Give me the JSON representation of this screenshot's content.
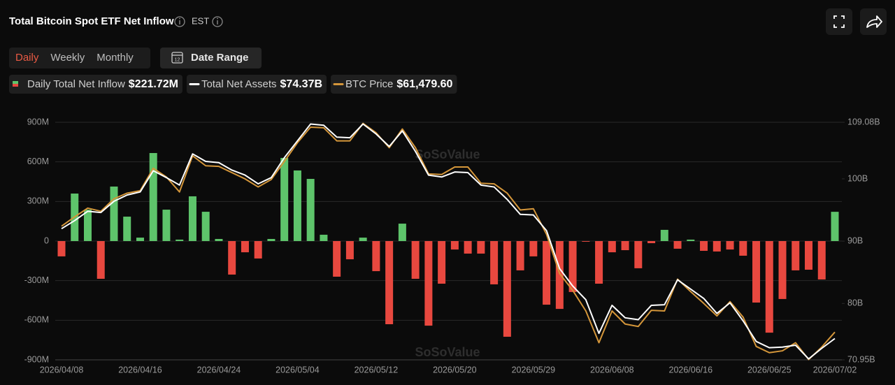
{
  "chart_data": {
    "type": "bar-line",
    "title": "Total Bitcoin Spot ETF Net Inflow",
    "timezone": "EST",
    "controls": {
      "periods": [
        "Daily",
        "Weekly",
        "Monthly"
      ],
      "active": 0,
      "date_range": "Date Range"
    },
    "watermark": "SoSoValue",
    "categories": [
      "2026/04/08",
      null,
      null,
      null,
      null,
      null,
      "2026/04/16",
      null,
      null,
      null,
      null,
      null,
      "2026/04/24",
      null,
      null,
      null,
      null,
      null,
      "2026/05/04",
      null,
      null,
      null,
      null,
      null,
      "2026/05/12",
      null,
      null,
      null,
      null,
      null,
      "2026/05/20",
      null,
      null,
      null,
      null,
      null,
      "2026/05/29",
      null,
      null,
      null,
      null,
      null,
      "2026/06/08",
      null,
      null,
      null,
      null,
      null,
      "2026/06/16",
      null,
      null,
      null,
      null,
      null,
      "2026/06/25",
      null,
      null,
      null,
      null,
      "2026/07/02"
    ],
    "series": [
      {
        "name": "Daily Total Net Inflow",
        "type": "bar",
        "latest": "$221.72M",
        "up_color": "#5ec46b",
        "down_color": "#e8483f",
        "values": [
          -116,
          360,
          238,
          -286,
          413,
          185,
          26,
          667,
          238,
          11,
          339,
          222,
          16,
          -254,
          -85,
          -132,
          16,
          630,
          535,
          471,
          48,
          -270,
          -138,
          26,
          -228,
          -630,
          132,
          -286,
          -641,
          -323,
          -64,
          -95,
          -95,
          -328,
          -725,
          -222,
          -116,
          -482,
          -514,
          -386,
          -5,
          -323,
          -85,
          -69,
          -206,
          -16,
          85,
          -58,
          11,
          -74,
          -79,
          -64,
          -111,
          -466,
          -694,
          -439,
          -222,
          -217,
          -291,
          221.72
        ]
      },
      {
        "name": "Total Net Assets",
        "type": "line",
        "axis": "y2",
        "latest": "$74.37B",
        "color": "#ffffff",
        "values": [
          92.0,
          93.3,
          94.8,
          94.6,
          96.4,
          97.4,
          97.9,
          101.3,
          100.2,
          99.0,
          104.0,
          102.8,
          102.6,
          101.4,
          100.6,
          99.2,
          100.2,
          103.4,
          106.1,
          108.8,
          108.6,
          106.7,
          106.6,
          108.8,
          107.2,
          105.2,
          107.7,
          104.4,
          100.6,
          100.3,
          101.1,
          101.0,
          99.0,
          98.7,
          96.7,
          94.3,
          94.2,
          91.7,
          85.6,
          82.8,
          80.6,
          75.2,
          79.7,
          77.7,
          77.4,
          79.7,
          79.8,
          83.8,
          82.3,
          80.8,
          78.4,
          80.1,
          77.2,
          73.9,
          72.9,
          73.0,
          73.3,
          71.1,
          72.8,
          74.37
        ]
      },
      {
        "name": "BTC Price",
        "type": "line",
        "axis": "y2",
        "latest": "$61,479.60",
        "color": "#d4963a",
        "values": [
          92.4,
          93.9,
          95.3,
          94.8,
          96.8,
          97.7,
          98.1,
          101.7,
          100.3,
          97.9,
          103.7,
          102.1,
          102.0,
          101.0,
          100.0,
          98.7,
          99.9,
          102.8,
          105.8,
          108.3,
          108.2,
          106.1,
          106.1,
          108.9,
          107.4,
          105.0,
          108.0,
          105.0,
          100.8,
          100.7,
          101.9,
          101.9,
          99.3,
          99.2,
          97.7,
          95.0,
          95.2,
          91.1,
          84.8,
          82.1,
          78.8,
          73.7,
          78.8,
          76.7,
          76.3,
          78.9,
          78.8,
          83.9,
          81.9,
          80.0,
          78.0,
          80.3,
          77.8,
          73.1,
          72.1,
          72.4,
          73.7,
          71.0,
          73.0,
          75.4
        ]
      }
    ],
    "ylim": [
      -900,
      900
    ],
    "yticks": [
      {
        "value": -900,
        "label": "-900M"
      },
      {
        "value": -600,
        "label": "-600M"
      },
      {
        "value": -300,
        "label": "-300M"
      },
      0,
      {
        "value": 300,
        "label": "300M"
      },
      {
        "value": 600,
        "label": "600M"
      },
      {
        "value": 900,
        "label": "900M"
      }
    ],
    "y2lim": [
      70.95,
      109.08
    ],
    "y2ticks": [
      {
        "value": 70.95,
        "label": "70.95B"
      },
      {
        "value": 80,
        "label": "80B"
      },
      {
        "value": 90,
        "label": "90B"
      },
      {
        "value": 100,
        "label": "100B"
      },
      {
        "value": 109.08,
        "label": "109.08B"
      }
    ],
    "grid": true
  }
}
